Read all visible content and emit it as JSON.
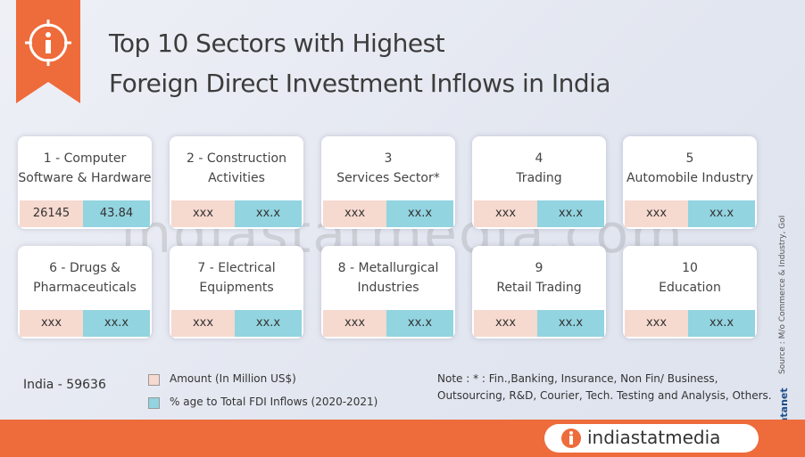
{
  "header": {
    "title_lines": [
      "Top 10 Sectors with Highest",
      "Foreign Direct Investment Inflows in India"
    ]
  },
  "cards": [
    {
      "lines": [
        "1 - Computer",
        "Software & Hardware"
      ],
      "amount": "26145",
      "percent": "43.84"
    },
    {
      "lines": [
        "2 - Construction",
        "Activities"
      ],
      "amount": "xxx",
      "percent": "xx.x"
    },
    {
      "lines": [
        "3",
        "Services Sector*"
      ],
      "amount": "xxx",
      "percent": "xx.x"
    },
    {
      "lines": [
        "4",
        "Trading"
      ],
      "amount": "xxx",
      "percent": "xx.x"
    },
    {
      "lines": [
        "5",
        "Automobile Industry"
      ],
      "amount": "xxx",
      "percent": "xx.x"
    },
    {
      "lines": [
        "6 - Drugs &",
        "Pharmaceuticals"
      ],
      "amount": "xxx",
      "percent": "xx.x"
    },
    {
      "lines": [
        "7 - Electrical",
        "Equipments"
      ],
      "amount": "xxx",
      "percent": "xx.x"
    },
    {
      "lines": [
        "8 - Metallurgical",
        "Industries"
      ],
      "amount": "xxx",
      "percent": "xx.x"
    },
    {
      "lines": [
        "9",
        "Retail Trading"
      ],
      "amount": "xxx",
      "percent": "xx.x"
    },
    {
      "lines": [
        "10",
        "Education"
      ],
      "amount": "xxx",
      "percent": "xx.x"
    }
  ],
  "total": "India - 59636",
  "legend": [
    "Amount (In Million US$)",
    "% age to Total FDI Inflows (2020-2021)"
  ],
  "note_lines": [
    "Note : * : Fin.,Banking, Insurance, Non Fin/ Business,",
    "Outsourcing, R&D, Courier,  Tech. Testing and Analysis, Others."
  ],
  "source": "Source : M/o Commerce & Industry, GoI",
  "credit": "© Datanet",
  "watermark": "indiastatmedia.com",
  "footer_brand": "indiastatmedia"
}
